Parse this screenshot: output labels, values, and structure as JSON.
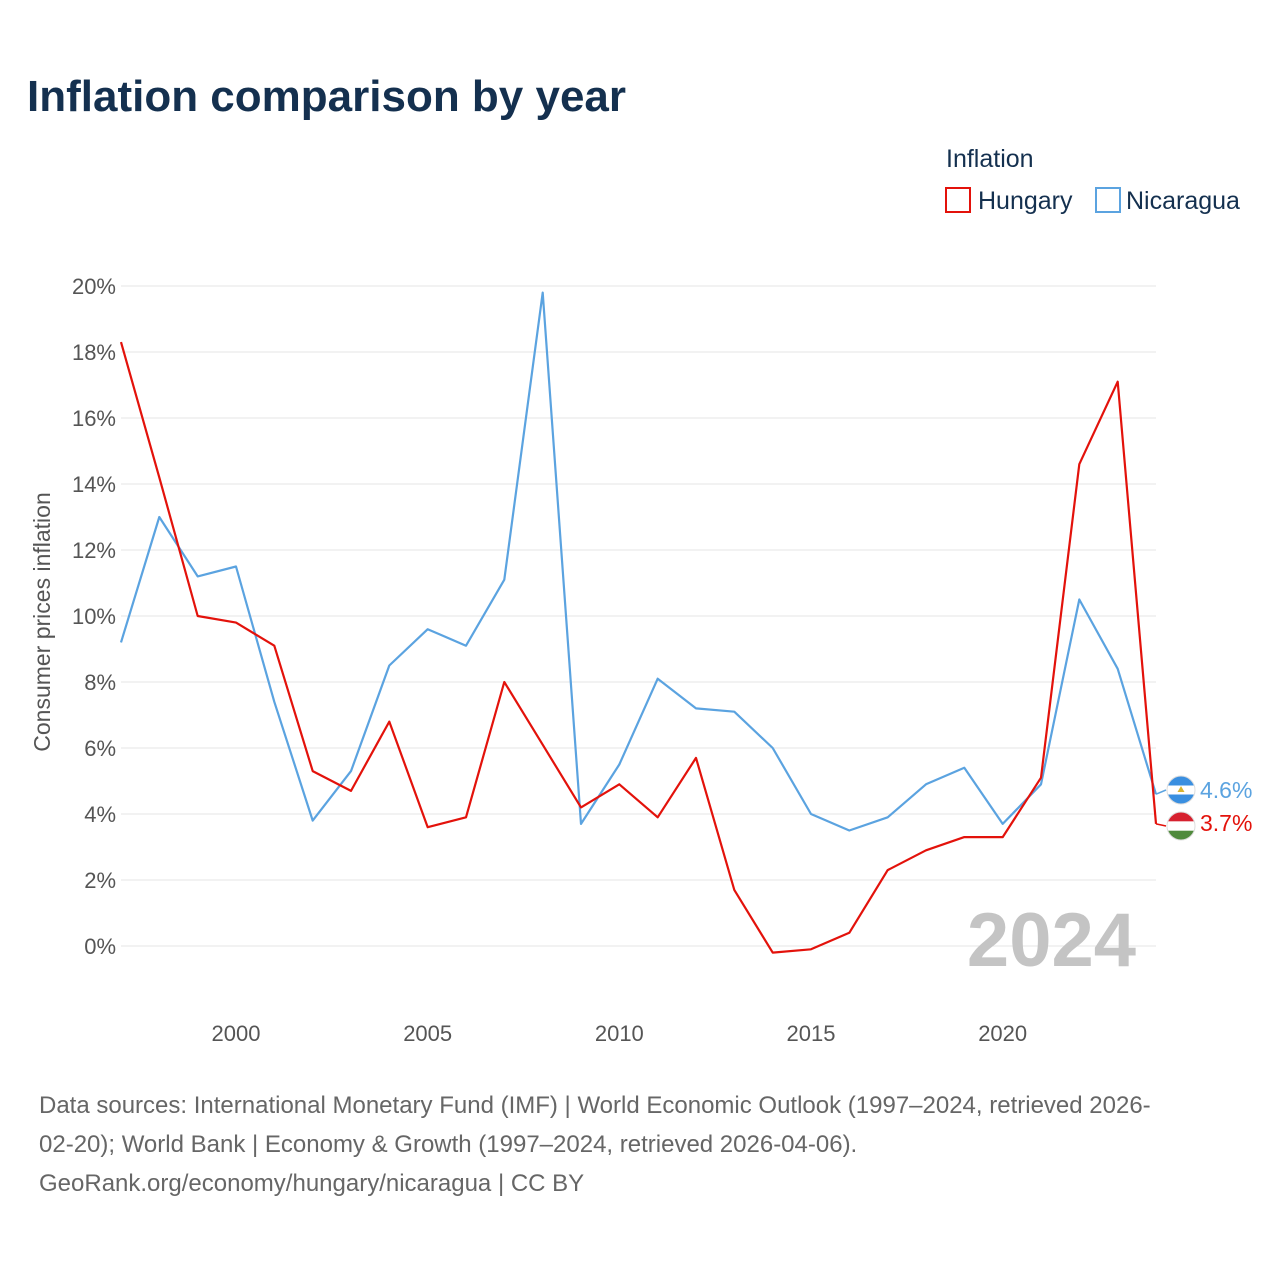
{
  "title": "Inflation comparison by year",
  "legend": {
    "title": "Inflation",
    "items": [
      {
        "label": "Hungary",
        "color": "#e3120b"
      },
      {
        "label": "Nicaragua",
        "color": "#5ba3e0"
      }
    ]
  },
  "watermark_year": "2024",
  "source": {
    "line1": "Data sources: International Monetary Fund (IMF) | World Economic Outlook (1997–2024, retrieved 2026-",
    "line2": "02-20); World Bank | Economy & Growth (1997–2024, retrieved 2026-04-06).",
    "line3": "GeoRank.org/economy/hungary/nicaragua | CC BY"
  },
  "chart_data": {
    "type": "line",
    "title": "Inflation comparison by year",
    "xlabel": "",
    "ylabel": "Consumer prices inflation",
    "xlim": [
      1997,
      2024
    ],
    "ylim": [
      -2,
      20
    ],
    "x_ticks": [
      2000,
      2005,
      2010,
      2015,
      2020
    ],
    "x_tick_labels": [
      "2000",
      "2005",
      "2010",
      "2015",
      "2020"
    ],
    "y_ticks": [
      0,
      2,
      4,
      6,
      8,
      10,
      12,
      14,
      16,
      18,
      20
    ],
    "y_tick_labels": [
      "0%",
      "2%",
      "4%",
      "6%",
      "8%",
      "10%",
      "12%",
      "14%",
      "16%",
      "18%",
      "20%"
    ],
    "legend_position": "top-right",
    "grid": true,
    "x": [
      1997,
      1998,
      1999,
      2000,
      2001,
      2002,
      2003,
      2004,
      2005,
      2006,
      2007,
      2008,
      2009,
      2010,
      2011,
      2012,
      2013,
      2014,
      2015,
      2016,
      2017,
      2018,
      2019,
      2020,
      2021,
      2022,
      2023,
      2024
    ],
    "series": [
      {
        "name": "Hungary",
        "color": "#e3120b",
        "values": [
          18.3,
          14.2,
          10.0,
          9.8,
          9.1,
          5.3,
          4.7,
          6.8,
          3.6,
          3.9,
          8.0,
          6.1,
          4.2,
          4.9,
          3.9,
          5.7,
          1.7,
          -0.2,
          -0.1,
          0.4,
          2.3,
          2.9,
          3.3,
          3.3,
          5.1,
          14.6,
          17.1,
          3.7
        ],
        "end_label": "3.7%"
      },
      {
        "name": "Nicaragua",
        "color": "#5ba3e0",
        "values": [
          9.2,
          13.0,
          11.2,
          11.5,
          7.4,
          3.8,
          5.3,
          8.5,
          9.6,
          9.1,
          11.1,
          19.8,
          3.7,
          5.5,
          8.1,
          7.2,
          7.1,
          6.0,
          4.0,
          3.5,
          3.9,
          4.9,
          5.4,
          3.7,
          4.9,
          10.5,
          8.4,
          4.6
        ],
        "end_label": "4.6%"
      }
    ]
  }
}
